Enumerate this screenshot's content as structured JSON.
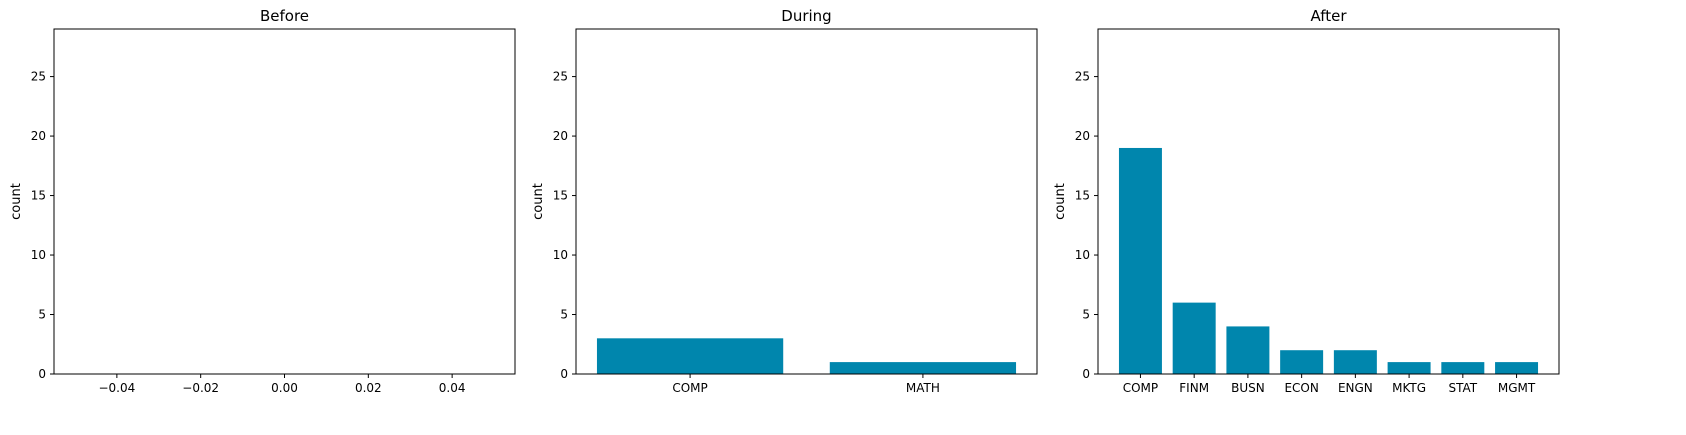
{
  "colors": {
    "bar": "#0086ad",
    "axis": "#000000",
    "background": "#ffffff"
  },
  "chart_data": [
    {
      "type": "bar",
      "title": "Before",
      "ylabel": "count",
      "xlabel": "",
      "categories": [],
      "values": [],
      "xlim": [
        -0.055,
        0.055
      ],
      "xticks": [
        -0.04,
        -0.02,
        0.0,
        0.02,
        0.04
      ],
      "xtick_labels": [
        "−0.04",
        "−0.02",
        "0.00",
        "0.02",
        "0.04"
      ],
      "ylim": [
        0,
        29
      ],
      "yticks": [
        0,
        5,
        10,
        15,
        20,
        25
      ],
      "grid": false
    },
    {
      "type": "bar",
      "title": "During",
      "ylabel": "count",
      "xlabel": "",
      "categories": [
        "COMP",
        "MATH"
      ],
      "values": [
        3,
        1
      ],
      "ylim": [
        0,
        29
      ],
      "yticks": [
        0,
        5,
        10,
        15,
        20,
        25
      ],
      "grid": false
    },
    {
      "type": "bar",
      "title": "After",
      "ylabel": "count",
      "xlabel": "",
      "categories": [
        "COMP",
        "FINM",
        "BUSN",
        "ECON",
        "ENGN",
        "MKTG",
        "STAT",
        "MGMT"
      ],
      "values": [
        19,
        6,
        4,
        2,
        2,
        1,
        1,
        1
      ],
      "ylim": [
        0,
        29
      ],
      "yticks": [
        0,
        5,
        10,
        15,
        20,
        25
      ],
      "grid": false
    }
  ]
}
